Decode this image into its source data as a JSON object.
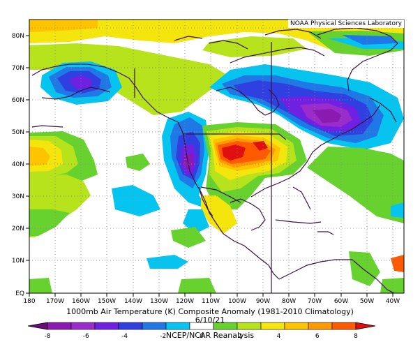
{
  "map": {
    "lab_label": "NOAA Physical Sciences Laboratory",
    "lon_ticks": [
      "180",
      "170W",
      "160W",
      "150W",
      "140W",
      "130W",
      "120W",
      "110W",
      "100W",
      "90W",
      "80W",
      "70W",
      "60W",
      "50W",
      "40W"
    ],
    "lat_ticks": [
      "EQ",
      "10N",
      "20N",
      "30N",
      "40N",
      "50N",
      "60N",
      "70N",
      "80N"
    ]
  },
  "caption": {
    "title": "1000mb Air Temperature (K) Composite Anomaly (1981-2010 Climatology)",
    "date": "6/10/21",
    "credit": "NCEP/NCAR Reanalysis"
  },
  "colorbar": {
    "labels": [
      "-8",
      "-6",
      "-4",
      "-2",
      "0",
      "2",
      "4",
      "6",
      "8"
    ],
    "colors": [
      "#6a0d7a",
      "#8a1ab0",
      "#9a2ccc",
      "#7020e0",
      "#3040e0",
      "#1f78e6",
      "#05c4f0",
      "#ffffff",
      "#67d22e",
      "#b6e31b",
      "#f4e60c",
      "#ffc400",
      "#ff9900",
      "#ff5a00",
      "#e01010"
    ]
  },
  "palette": {
    "purple": "#8a1ab0",
    "violet": "#7020e0",
    "blue": "#3040e0",
    "mid_blue": "#1f78e6",
    "cyan": "#05c4f0",
    "green": "#67d22e",
    "lime": "#b6e31b",
    "yellow": "#f4e60c",
    "gold": "#ffc400",
    "orange": "#ff9900",
    "red_orange": "#ff5a00",
    "red": "#e01010",
    "coast": "#3b1040"
  }
}
